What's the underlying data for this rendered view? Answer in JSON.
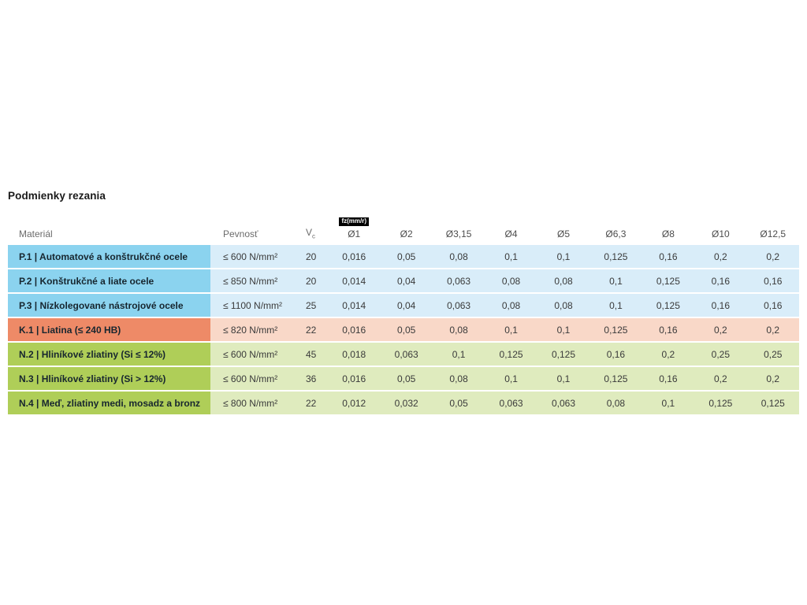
{
  "title": "Podmienky rezania",
  "colors": {
    "blue-dark": "#8BD3EF",
    "blue-light": "#D9EDF9",
    "salmon-dark": "#EE8A67",
    "salmon-light": "#F9D8C8",
    "green-dark": "#AFCE58",
    "green-light": "#DFEBBE",
    "badge-bg": "#000000",
    "badge-text": "#FFFFFF",
    "header-text": "#6B6B6B",
    "dia-header-text": "#4D4D4D",
    "label-text": "#17262F",
    "value-text": "#3A3A3A"
  },
  "table": {
    "headers": {
      "material": "Materiál",
      "strength": "Pevnosť",
      "vc_main": "V",
      "vc_sub": "c",
      "feed_badge": "fz(mm/r)",
      "diameters": [
        "Ø1",
        "Ø2",
        "Ø3,15",
        "Ø4",
        "Ø5",
        "Ø6,3",
        "Ø8",
        "Ø10",
        "Ø12,5"
      ]
    },
    "rows": [
      {
        "group": "p",
        "material": "P.1 | Automatové a konštrukčné ocele",
        "strength": "≤ 600 N/mm²",
        "vc": "20",
        "feeds": [
          "0,016",
          "0,05",
          "0,08",
          "0,1",
          "0,1",
          "0,125",
          "0,16",
          "0,2",
          "0,2"
        ]
      },
      {
        "group": "p",
        "material": "P.2 | Konštrukčné a liate ocele",
        "strength": "≤ 850 N/mm²",
        "vc": "20",
        "feeds": [
          "0,014",
          "0,04",
          "0,063",
          "0,08",
          "0,08",
          "0,1",
          "0,125",
          "0,16",
          "0,16"
        ]
      },
      {
        "group": "p",
        "material": "P.3 | Nízkolegované nástrojové ocele",
        "strength": "≤ 1100 N/mm²",
        "vc": "25",
        "feeds": [
          "0,014",
          "0,04",
          "0,063",
          "0,08",
          "0,08",
          "0,1",
          "0,125",
          "0,16",
          "0,16"
        ]
      },
      {
        "group": "k",
        "material": "K.1 | Liatina (≤ 240 HB)",
        "strength": "≤ 820 N/mm²",
        "vc": "22",
        "feeds": [
          "0,016",
          "0,05",
          "0,08",
          "0,1",
          "0,1",
          "0,125",
          "0,16",
          "0,2",
          "0,2"
        ]
      },
      {
        "group": "n",
        "material": "N.2 | Hliníkové zliatiny (Si ≤ 12%)",
        "strength": "≤ 600 N/mm²",
        "vc": "45",
        "feeds": [
          "0,018",
          "0,063",
          "0,1",
          "0,125",
          "0,125",
          "0,16",
          "0,2",
          "0,25",
          "0,25"
        ]
      },
      {
        "group": "n",
        "material": "N.3 | Hliníkové zliatiny (Si > 12%)",
        "strength": "≤ 600 N/mm²",
        "vc": "36",
        "feeds": [
          "0,016",
          "0,05",
          "0,08",
          "0,1",
          "0,1",
          "0,125",
          "0,16",
          "0,2",
          "0,2"
        ]
      },
      {
        "group": "n",
        "material": "N.4 | Meď, zliatiny medi, mosadz a bronz",
        "strength": "≤ 800 N/mm²",
        "vc": "22",
        "feeds": [
          "0,012",
          "0,032",
          "0,05",
          "0,063",
          "0,063",
          "0,08",
          "0,1",
          "0,125",
          "0,125"
        ]
      }
    ]
  }
}
